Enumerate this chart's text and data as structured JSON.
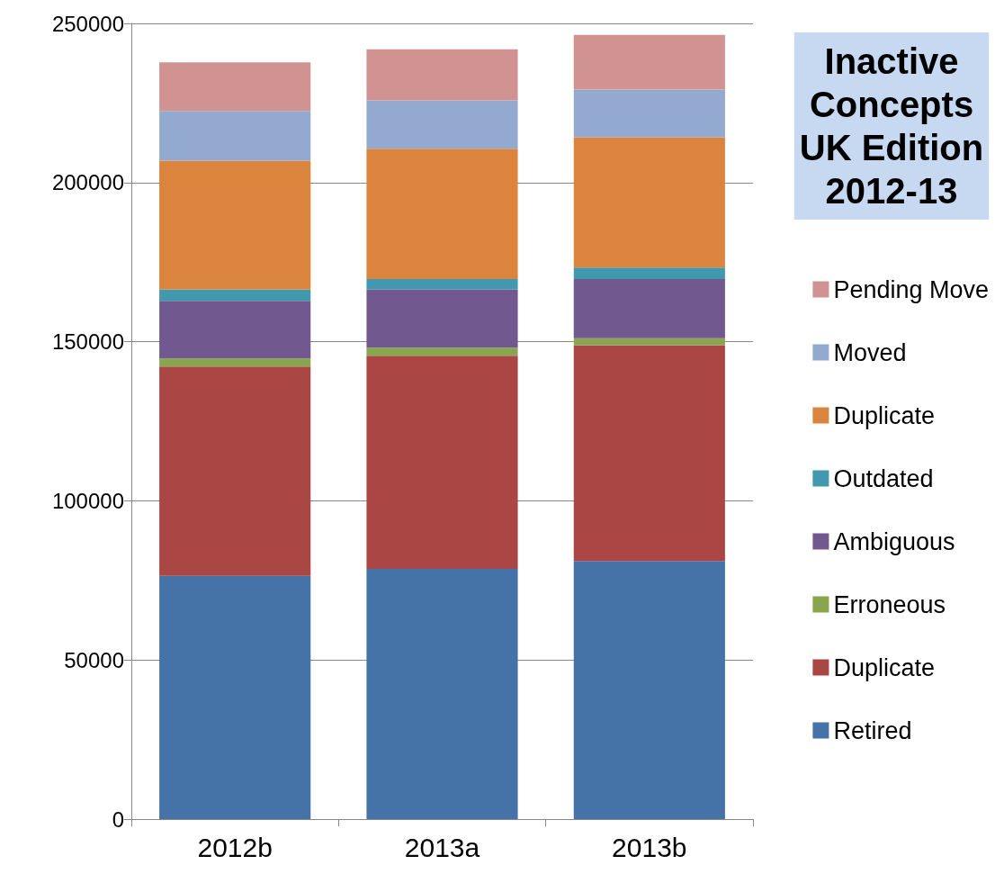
{
  "chart_data": {
    "type": "bar",
    "title": "Inactive\nConcepts\nUK Edition\n2012-13",
    "categories": [
      "2012b",
      "2013a",
      "2013b"
    ],
    "stacked": true,
    "series": [
      {
        "name": "Retired",
        "color": "#4572a7",
        "values": [
          76400,
          78600,
          81100
        ]
      },
      {
        "name": "Duplicate",
        "color": "#aa4643",
        "values": [
          65800,
          67000,
          67800
        ]
      },
      {
        "name": "Erroneous",
        "color": "#89a54e",
        "values": [
          2500,
          2500,
          2200
        ]
      },
      {
        "name": "Ambiguous",
        "color": "#71588f",
        "values": [
          18100,
          18300,
          18600
        ]
      },
      {
        "name": "Outdated",
        "color": "#4198af",
        "values": [
          3600,
          3300,
          3600
        ]
      },
      {
        "name": "Duplicate",
        "color": "#db843d",
        "values": [
          40500,
          40900,
          40900
        ]
      },
      {
        "name": "Moved",
        "color": "#93a9cf",
        "values": [
          15600,
          15200,
          15000
        ]
      },
      {
        "name": "Pending Move",
        "color": "#d19392",
        "values": [
          15300,
          16100,
          17200
        ]
      }
    ],
    "ylim": [
      0,
      250000
    ],
    "yticks": [
      0,
      50000,
      100000,
      150000,
      200000,
      250000
    ],
    "grid": "y",
    "legend": "right"
  }
}
